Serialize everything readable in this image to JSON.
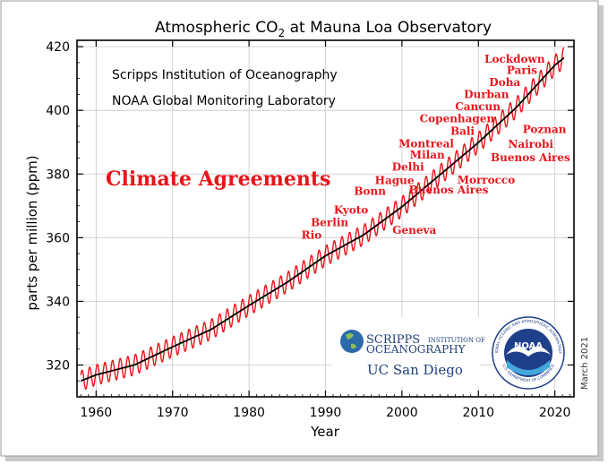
{
  "chart_data": {
    "type": "line",
    "title": "Atmospheric CO₂ at Mauna Loa Observatory",
    "title_main": "Atmospheric CO",
    "title_sub": "2",
    "title_rest": " at Mauna Loa Observatory",
    "xlabel": "Year",
    "ylabel": "parts per million (ppm)",
    "xlim": [
      1957.5,
      2022.5
    ],
    "ylim": [
      310,
      422
    ],
    "xticks": [
      1960,
      1970,
      1980,
      1990,
      2000,
      2010,
      2020
    ],
    "yticks": [
      320,
      340,
      360,
      380,
      400,
      420
    ],
    "grid": true,
    "credit_lines": [
      "Scripps Institution of Oceanography",
      "NOAA Global Monitoring Laboratory"
    ],
    "date_note": "March 2021",
    "heading": "Climate Agreements",
    "colors": {
      "monthly": "#e8141a",
      "trend": "#000000",
      "annotation": "#e8141a",
      "axes": "#000000",
      "grid": "#c8c8c8"
    },
    "series": [
      {
        "name": "monthly",
        "seasonal_amplitude_ppm": 3.2,
        "x": [
          1958,
          1960,
          1965,
          1970,
          1975,
          1980,
          1985,
          1990,
          1995,
          2000,
          2005,
          2010,
          2015,
          2020,
          2021.2
        ],
        "values": [
          315.0,
          316.9,
          320.0,
          325.7,
          331.1,
          338.7,
          346.0,
          354.3,
          360.9,
          369.7,
          379.8,
          389.9,
          401.0,
          414.2,
          416.5
        ]
      },
      {
        "name": "trend",
        "x": [
          1958,
          1960,
          1965,
          1970,
          1975,
          1980,
          1985,
          1990,
          1995,
          2000,
          2005,
          2010,
          2015,
          2020,
          2021.2
        ],
        "values": [
          315.0,
          316.9,
          320.0,
          325.7,
          331.1,
          338.7,
          346.0,
          354.3,
          360.9,
          369.7,
          379.8,
          389.9,
          401.0,
          414.2,
          416.5
        ]
      }
    ],
    "annotations": [
      {
        "text": "Rio",
        "x": 1992,
        "y": 359
      },
      {
        "text": "Berlin",
        "x": 1995,
        "y": 363
      },
      {
        "text": "Kyoto",
        "x": 1997,
        "y": 367
      },
      {
        "text": "Geneva",
        "x": 1996,
        "y": 361
      },
      {
        "text": "Bonn",
        "x": 1999,
        "y": 373
      },
      {
        "text": "Hague",
        "x": 2000,
        "y": 376
      },
      {
        "text": "Delhi",
        "x": 2002,
        "y": 380
      },
      {
        "text": "Milan",
        "x": 2003,
        "y": 383
      },
      {
        "text": "Buenos Aires",
        "x": 2004,
        "y": 375
      },
      {
        "text": "Morrocco",
        "x": 2001,
        "y": 377
      },
      {
        "text": "Montreal",
        "x": 2005,
        "y": 387
      },
      {
        "text": "Bali",
        "x": 2007,
        "y": 391
      },
      {
        "text": "Copenhagen",
        "x": 2009,
        "y": 395
      },
      {
        "text": "Cancun",
        "x": 2010,
        "y": 397
      },
      {
        "text": "Durban",
        "x": 2011,
        "y": 400
      },
      {
        "text": "Doha",
        "x": 2012,
        "y": 403
      },
      {
        "text": "Poznan",
        "x": 2008,
        "y": 388
      },
      {
        "text": "Nairobi",
        "x": 2006,
        "y": 384
      },
      {
        "text": "Buenos Aires",
        "x": 2004,
        "y": 380
      },
      {
        "text": "Paris",
        "x": 2015,
        "y": 407
      },
      {
        "text": "Lockdown",
        "x": 2020,
        "y": 411
      }
    ]
  },
  "logos": {
    "scripps_big": "SCRIPPS",
    "scripps_inst": "INSTITUTION OF",
    "scripps_ocean": "OCEANOGRAPHY",
    "ucsd": "UC San Diego",
    "noaa": "NOAA",
    "noaa_ring_top": "NATIONAL OCEANIC AND ATMOSPHERIC ADMINISTRATION",
    "noaa_ring_bottom": "U.S. DEPARTMENT OF COMMERCE"
  }
}
